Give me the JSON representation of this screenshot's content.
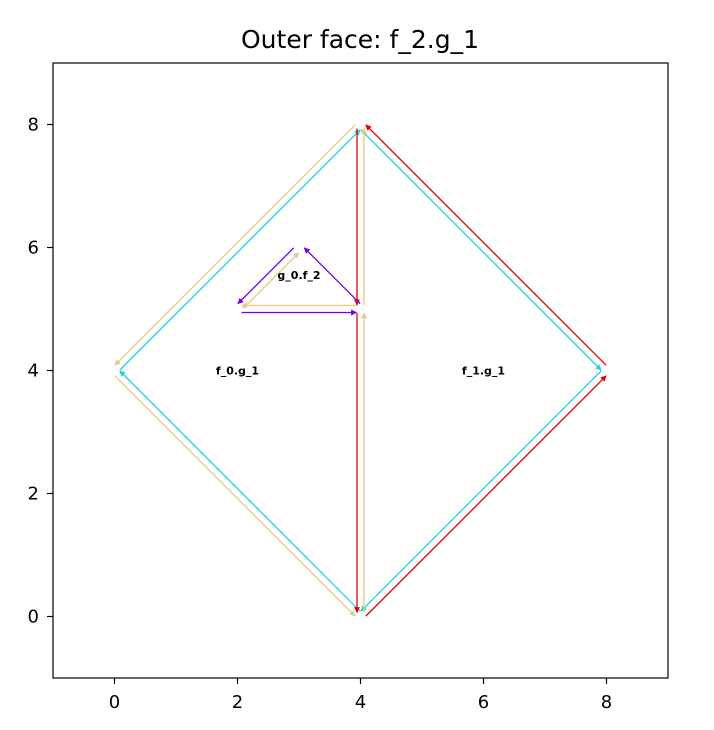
{
  "title": "Outer face: f_2.g_1",
  "chart_data": {
    "type": "diagram",
    "title": "Outer face: f_2.g_1",
    "xlim": [
      -1,
      9
    ],
    "ylim": [
      -1,
      9
    ],
    "xticks": [
      0,
      2,
      4,
      6,
      8
    ],
    "yticks": [
      0,
      2,
      4,
      6,
      8
    ],
    "face_labels": [
      {
        "text": "f_0.g_1",
        "x": 2,
        "y": 4
      },
      {
        "text": "f_1.g_1",
        "x": 6,
        "y": 4
      },
      {
        "text": "g_0.f_2",
        "x": 3,
        "y": 5.55
      }
    ],
    "edges": [
      {
        "color": "#1fd3e0",
        "from": [
          0,
          4
        ],
        "to": [
          4,
          8
        ]
      },
      {
        "color": "#1fd3e0",
        "from": [
          4,
          0
        ],
        "to": [
          0,
          4
        ]
      },
      {
        "color": "#1fd3e0",
        "from": [
          8,
          4
        ],
        "to": [
          4,
          0
        ]
      },
      {
        "color": "#1fd3e0",
        "from": [
          4,
          8
        ],
        "to": [
          8,
          4
        ]
      },
      {
        "color": "#e8c98a",
        "from": [
          4,
          8
        ],
        "to": [
          0,
          4
        ]
      },
      {
        "color": "#e8c98a",
        "from": [
          0,
          4
        ],
        "to": [
          4,
          0
        ]
      },
      {
        "color": "#e8c98a",
        "from": [
          4,
          0
        ],
        "to": [
          4,
          5
        ]
      },
      {
        "color": "#e8c98a",
        "from": [
          4,
          5
        ],
        "to": [
          2,
          5
        ]
      },
      {
        "color": "#e8c98a",
        "from": [
          2,
          5
        ],
        "to": [
          3,
          6
        ]
      },
      {
        "color": "#e8c98a",
        "from": [
          4,
          5
        ],
        "to": [
          4,
          8
        ]
      },
      {
        "color": "#e60000",
        "from": [
          4,
          0
        ],
        "to": [
          8,
          4
        ]
      },
      {
        "color": "#e60000",
        "from": [
          8,
          4
        ],
        "to": [
          4,
          8
        ]
      },
      {
        "color": "#e60000",
        "from": [
          4,
          8
        ],
        "to": [
          4,
          5
        ]
      },
      {
        "color": "#e60000",
        "from": [
          4,
          5
        ],
        "to": [
          4,
          0
        ]
      },
      {
        "color": "#7a00e6",
        "from": [
          2,
          5
        ],
        "to": [
          4,
          5
        ]
      },
      {
        "color": "#7a00e6",
        "from": [
          4,
          5
        ],
        "to": [
          3,
          6
        ]
      },
      {
        "color": "#7a00e6",
        "from": [
          3,
          6
        ],
        "to": [
          2,
          5
        ]
      }
    ]
  }
}
